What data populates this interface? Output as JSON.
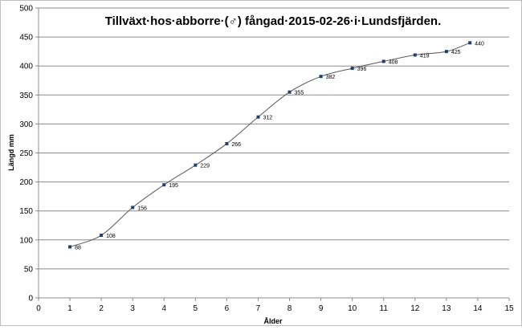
{
  "chart_data": {
    "type": "scatter",
    "title": "Tillväxt·hos·abborre·(♂) fångad·2015-02-26·i·Lundsfjärden.",
    "xlabel": "Ålder",
    "ylabel": "Längd mm",
    "xlim": [
      0,
      15
    ],
    "ylim": [
      0,
      500
    ],
    "x_ticks": [
      "0",
      "1",
      "2",
      "3",
      "4",
      "5",
      "6",
      "7",
      "8",
      "9",
      "10",
      "11",
      "12",
      "13",
      "14",
      "15"
    ],
    "y_ticks": [
      "0",
      "50",
      "100",
      "150",
      "200",
      "250",
      "300",
      "350",
      "400",
      "450",
      "500"
    ],
    "grid": "horizontal",
    "legend": "none",
    "smoothed_line": true,
    "series": [
      {
        "x": [
          1,
          2,
          3,
          4,
          5,
          6,
          7,
          8,
          9,
          10,
          11,
          12,
          13,
          13.75
        ],
        "y": [
          88,
          108,
          156,
          195,
          229,
          266,
          312,
          355,
          382,
          396,
          408,
          419,
          425,
          440
        ],
        "labels": [
          "88",
          "108",
          "156",
          "195",
          "229",
          "266",
          "312",
          "355",
          "382",
          "396",
          "408",
          "419",
          "425",
          "440"
        ],
        "color": "#1f3f6f"
      }
    ]
  }
}
